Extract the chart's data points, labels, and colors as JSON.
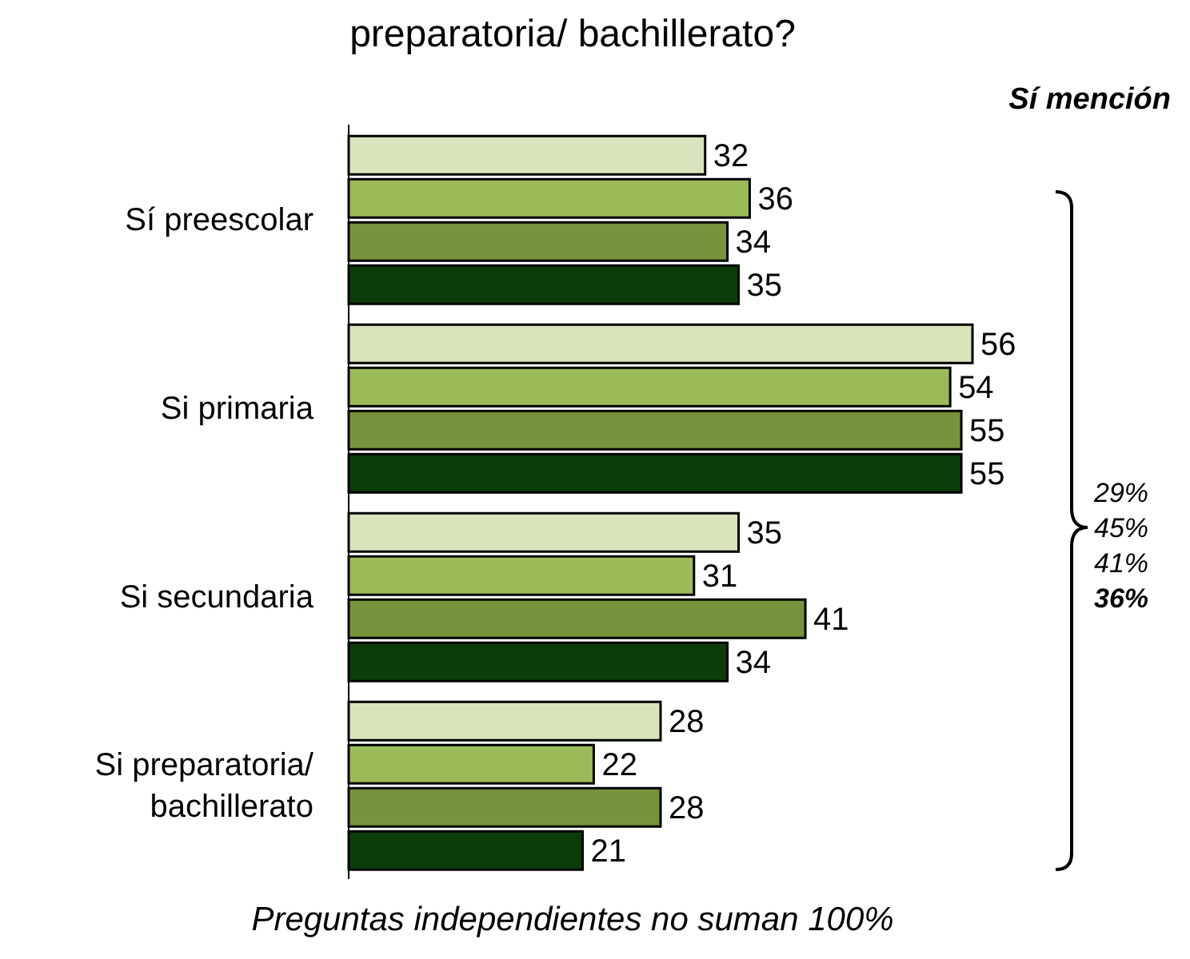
{
  "chart_data": {
    "type": "bar",
    "orientation": "horizontal",
    "title": "preparatoria/ bachillerato?",
    "categories": [
      "Sí preescolar",
      "Si primaria",
      "Si secundaria",
      "Si preparatoria/ bachillerato"
    ],
    "series": [
      {
        "color": "#d8e4bc",
        "values": [
          32,
          56,
          35,
          28
        ]
      },
      {
        "color": "#9bbb59",
        "values": [
          36,
          54,
          31,
          22
        ]
      },
      {
        "color": "#77933c",
        "values": [
          34,
          55,
          41,
          28
        ]
      },
      {
        "color": "#0b3d0b",
        "values": [
          35,
          55,
          34,
          21
        ]
      }
    ],
    "data_labels": true,
    "annotations": [
      "Sí mención",
      "29%",
      "45%",
      "41%",
      "36%",
      "Preguntas independientes no suman 100%"
    ]
  }
}
